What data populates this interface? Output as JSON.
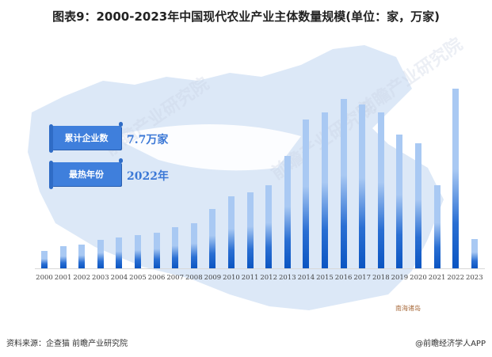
{
  "title": "图表9：2000-2023年中国现代农业产业主体数量规模(单位：家，万家)",
  "info_boxes": [
    {
      "label": "累计企业数",
      "value": "7.7万家"
    },
    {
      "label": "最热年份",
      "value": "2022年"
    }
  ],
  "map_label": "南海诸岛",
  "watermark": "前瞻产业研究院",
  "footer": {
    "source": "资料来源：企查猫 前瞻产业研究院",
    "credit": "@前瞻经济学人APP"
  },
  "colors": {
    "bar_dark": "#0b55c2",
    "bar_light": "#a9c9f3",
    "ribbon": "#3f7fdc",
    "stat_text": "#3b78d6",
    "map_fill": "#dce8f7"
  },
  "chart_data": {
    "type": "bar",
    "title": "图表9：2000-2023年中国现代农业产业主体数量规模(单位：家，万家)",
    "xlabel": "",
    "ylabel": "",
    "ylim": [
      0,
      7000
    ],
    "yticks": [
      0,
      1000,
      2000,
      3000,
      4000,
      5000,
      6000,
      7000
    ],
    "grid": false,
    "legend": null,
    "categories": [
      "2000",
      "2001",
      "2002",
      "2003",
      "2004",
      "2005",
      "2006",
      "2007",
      "2008",
      "2009",
      "2010",
      "2011",
      "2012",
      "2013",
      "2014",
      "2015",
      "2016",
      "2017",
      "2018",
      "2019",
      "2020",
      "2021",
      "2022",
      "2023"
    ],
    "values": [
      620,
      790,
      840,
      1010,
      1090,
      1180,
      1260,
      1460,
      1600,
      2100,
      2550,
      2690,
      2940,
      3980,
      5260,
      5520,
      5990,
      5800,
      5520,
      4730,
      4420,
      2940,
      6350,
      1040
    ]
  }
}
